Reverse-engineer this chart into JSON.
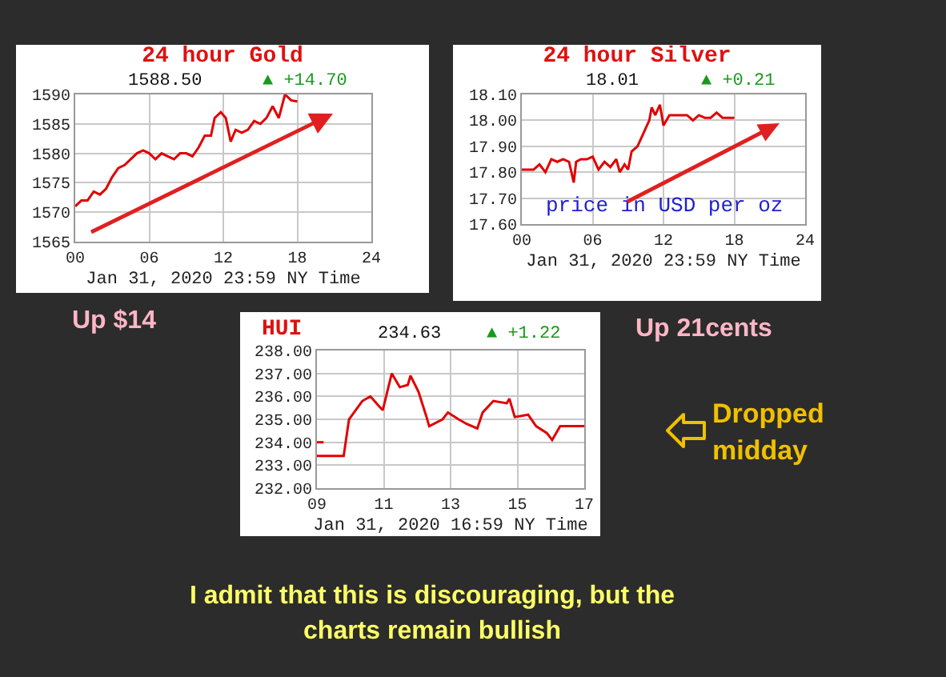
{
  "chart_data": [
    {
      "type": "line",
      "title": "24 hour Gold",
      "xlabel": "Jan 31, 2020 23:59 NY Time",
      "annotations": [
        "1588.50",
        "▲ +14.70",
        "Up $14"
      ],
      "x": [
        0,
        0.5,
        1,
        1.5,
        2,
        2.5,
        3,
        3.5,
        4,
        4.5,
        5,
        5.5,
        6,
        6.5,
        7,
        7.5,
        8,
        8.5,
        9,
        9.5,
        10,
        10.5,
        11,
        11.3,
        11.8,
        12.2,
        12.6,
        13,
        13.5,
        14,
        14.5,
        15,
        15.5,
        16,
        16.5,
        17,
        17.5,
        18
      ],
      "series": [
        {
          "color": "#e00000",
          "values": [
            1571,
            1572,
            1572,
            1573.5,
            1573,
            1574,
            1576,
            1577.5,
            1578,
            1579,
            1580,
            1580.5,
            1580,
            1579,
            1580,
            1579.5,
            1579,
            1580,
            1580,
            1579.5,
            1581,
            1583,
            1583,
            1586,
            1587,
            1586,
            1582,
            1584,
            1583.5,
            1584,
            1585.5,
            1585,
            1586,
            1588,
            1586,
            1590,
            1589,
            1588.8
          ]
        }
      ],
      "xlim": [
        0,
        24
      ],
      "xticks": [
        {
          "value": 0,
          "label": "00"
        },
        {
          "value": 6,
          "label": "06"
        },
        12,
        18,
        24
      ],
      "ylim": [
        1565,
        1590
      ],
      "yticks": [
        1565,
        1570,
        1575,
        1580,
        1585,
        1590
      ],
      "grid": true
    },
    {
      "type": "line",
      "title": "24 hour Silver",
      "xlabel": "Jan 31, 2020 23:59 NY Time",
      "annotations": [
        "18.01",
        "▲ +0.21",
        "price in USD per oz",
        "Up 21cents"
      ],
      "x": [
        0,
        1,
        1.5,
        2,
        2.5,
        3,
        3.5,
        4,
        4.4,
        4.6,
        5,
        5.5,
        6,
        6.5,
        7,
        7.5,
        8,
        8.3,
        8.7,
        9,
        9.3,
        9.8,
        10.3,
        10.8,
        11,
        11.3,
        11.7,
        12,
        12.5,
        13,
        14,
        14.5,
        15,
        15.5,
        16,
        16.5,
        17,
        18
      ],
      "series": [
        {
          "color": "#e00000",
          "values": [
            17.81,
            17.81,
            17.83,
            17.8,
            17.85,
            17.84,
            17.85,
            17.84,
            17.76,
            17.84,
            17.85,
            17.85,
            17.86,
            17.81,
            17.84,
            17.82,
            17.85,
            17.8,
            17.83,
            17.81,
            17.88,
            17.9,
            17.95,
            18,
            18.05,
            18.02,
            18.06,
            17.98,
            18.02,
            18.02,
            18.02,
            18,
            18.02,
            18.01,
            18.01,
            18.03,
            18.01,
            18.01
          ]
        }
      ],
      "xlim": [
        0,
        24
      ],
      "xticks": [
        {
          "value": 0,
          "label": "00"
        },
        {
          "value": 6,
          "label": "06"
        },
        12,
        18,
        24
      ],
      "ylim": [
        17.6,
        18.1
      ],
      "yticks": [
        {
          "value": 17.6,
          "label": "17.60"
        },
        {
          "value": 17.7,
          "label": "17.70"
        },
        {
          "value": 17.8,
          "label": "17.80"
        },
        {
          "value": 17.9,
          "label": "17.90"
        },
        {
          "value": 18,
          "label": "18.00"
        },
        {
          "value": 18.1,
          "label": "18.10"
        }
      ],
      "grid": true
    },
    {
      "type": "line",
      "title": "HUI",
      "xlabel": "Jan 31, 2020 16:59 NY Time",
      "annotations": [
        "234.63",
        "▲ +1.22",
        "Dropped midday",
        "I admit that this is discouraging, but the charts remain bullish"
      ],
      "x": [
        9,
        9.8,
        9.96,
        10.36,
        10.6,
        10.84,
        10.97,
        11.24,
        11.48,
        11.72,
        11.8,
        12.04,
        12.28,
        12.36,
        12.76,
        12.92,
        13.24,
        13.48,
        13.8,
        13.96,
        14.28,
        14.68,
        14.76,
        14.92,
        15.32,
        15.56,
        15.88,
        16.04,
        16.28,
        17
      ],
      "series": [
        {
          "color": "#e00000",
          "values": [
            233.4,
            233.4,
            235,
            235.8,
            236,
            235.6,
            235.4,
            237,
            236.4,
            236.5,
            236.9,
            236.2,
            235.1,
            234.7,
            235,
            235.3,
            235,
            234.8,
            234.6,
            235.3,
            235.8,
            235.7,
            235.9,
            235.1,
            235.2,
            234.7,
            234.4,
            234.1,
            234.7,
            234.7
          ]
        },
        {
          "color": "#e00000",
          "x": [
            9,
            9.2
          ],
          "values": [
            234,
            234
          ]
        }
      ],
      "xlim": [
        9,
        17
      ],
      "xticks": [
        {
          "value": 9,
          "label": "09"
        },
        11,
        13,
        15,
        17
      ],
      "ylim": [
        232,
        238
      ],
      "yticks": [
        {
          "value": 232,
          "label": "232.00"
        },
        {
          "value": 233,
          "label": "233.00"
        },
        {
          "value": 234,
          "label": "234.00"
        },
        {
          "value": 235,
          "label": "235.00"
        },
        {
          "value": 236,
          "label": "236.00"
        },
        {
          "value": 237,
          "label": "237.00"
        },
        {
          "value": 238,
          "label": "238.00"
        }
      ],
      "grid": true
    }
  ]
}
